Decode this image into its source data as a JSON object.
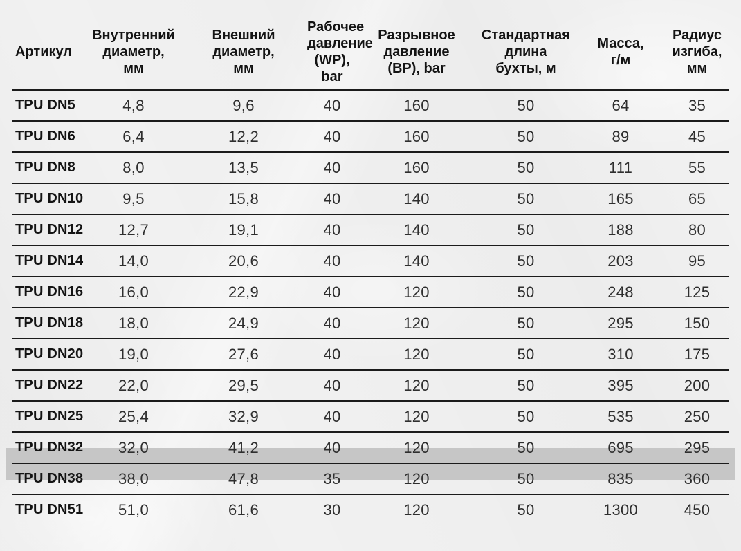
{
  "page": {
    "background_color": "#f1f1f1"
  },
  "table": {
    "line_color": "#1b1b1b",
    "highlight_color": "#c6c6c6",
    "highlighted_article": "TPU DN32",
    "columns": [
      {
        "key": "article",
        "label": "Артикул"
      },
      {
        "key": "inner_diameter",
        "label": "Внутренний\nдиаметр,\nмм"
      },
      {
        "key": "outer_diameter",
        "label": "Внешний\nдиаметр,\nмм"
      },
      {
        "key": "working_pressure",
        "label": "Рабочее\nдавление\n(WP), bar"
      },
      {
        "key": "burst_pressure",
        "label": "Разрывное\nдавление\n(BP), bar"
      },
      {
        "key": "coil_length",
        "label": "Стандартная\nдлина\nбухты, м"
      },
      {
        "key": "mass",
        "label": "Масса,\nг/м"
      },
      {
        "key": "bend_radius",
        "label": "Радиус\nизгиба,\nмм"
      }
    ],
    "rows": [
      {
        "article": "TPU DN5",
        "inner_diameter": "4,8",
        "outer_diameter": "9,6",
        "working_pressure": "40",
        "burst_pressure": "160",
        "coil_length": "50",
        "mass": "64",
        "bend_radius": "35",
        "highlight": false
      },
      {
        "article": "TPU DN6",
        "inner_diameter": "6,4",
        "outer_diameter": "12,2",
        "working_pressure": "40",
        "burst_pressure": "160",
        "coil_length": "50",
        "mass": "89",
        "bend_radius": "45",
        "highlight": false
      },
      {
        "article": "TPU DN8",
        "inner_diameter": "8,0",
        "outer_diameter": "13,5",
        "working_pressure": "40",
        "burst_pressure": "160",
        "coil_length": "50",
        "mass": "111",
        "bend_radius": "55",
        "highlight": false
      },
      {
        "article": "TPU DN10",
        "inner_diameter": "9,5",
        "outer_diameter": "15,8",
        "working_pressure": "40",
        "burst_pressure": "140",
        "coil_length": "50",
        "mass": "165",
        "bend_radius": "65",
        "highlight": false
      },
      {
        "article": "TPU DN12",
        "inner_diameter": "12,7",
        "outer_diameter": "19,1",
        "working_pressure": "40",
        "burst_pressure": "140",
        "coil_length": "50",
        "mass": "188",
        "bend_radius": "80",
        "highlight": false
      },
      {
        "article": "TPU DN14",
        "inner_diameter": "14,0",
        "outer_diameter": "20,6",
        "working_pressure": "40",
        "burst_pressure": "140",
        "coil_length": "50",
        "mass": "203",
        "bend_radius": "95",
        "highlight": false
      },
      {
        "article": "TPU DN16",
        "inner_diameter": "16,0",
        "outer_diameter": "22,9",
        "working_pressure": "40",
        "burst_pressure": "120",
        "coil_length": "50",
        "mass": "248",
        "bend_radius": "125",
        "highlight": false
      },
      {
        "article": "TPU DN18",
        "inner_diameter": "18,0",
        "outer_diameter": "24,9",
        "working_pressure": "40",
        "burst_pressure": "120",
        "coil_length": "50",
        "mass": "295",
        "bend_radius": "150",
        "highlight": false
      },
      {
        "article": "TPU DN20",
        "inner_diameter": "19,0",
        "outer_diameter": "27,6",
        "working_pressure": "40",
        "burst_pressure": "120",
        "coil_length": "50",
        "mass": "310",
        "bend_radius": "175",
        "highlight": false
      },
      {
        "article": "TPU DN22",
        "inner_diameter": "22,0",
        "outer_diameter": "29,5",
        "working_pressure": "40",
        "burst_pressure": "120",
        "coil_length": "50",
        "mass": "395",
        "bend_radius": "200",
        "highlight": false
      },
      {
        "article": "TPU DN25",
        "inner_diameter": "25,4",
        "outer_diameter": "32,9",
        "working_pressure": "40",
        "burst_pressure": "120",
        "coil_length": "50",
        "mass": "535",
        "bend_radius": "250",
        "highlight": false
      },
      {
        "article": "TPU DN32",
        "inner_diameter": "32,0",
        "outer_diameter": "41,2",
        "working_pressure": "40",
        "burst_pressure": "120",
        "coil_length": "50",
        "mass": "695",
        "bend_radius": "295",
        "highlight": true
      },
      {
        "article": "TPU DN38",
        "inner_diameter": "38,0",
        "outer_diameter": "47,8",
        "working_pressure": "35",
        "burst_pressure": "120",
        "coil_length": "50",
        "mass": "835",
        "bend_radius": "360",
        "highlight": false
      },
      {
        "article": "TPU DN51",
        "inner_diameter": "51,0",
        "outer_diameter": "61,6",
        "working_pressure": "30",
        "burst_pressure": "120",
        "coil_length": "50",
        "mass": "1300",
        "bend_radius": "450",
        "highlight": false
      }
    ]
  }
}
